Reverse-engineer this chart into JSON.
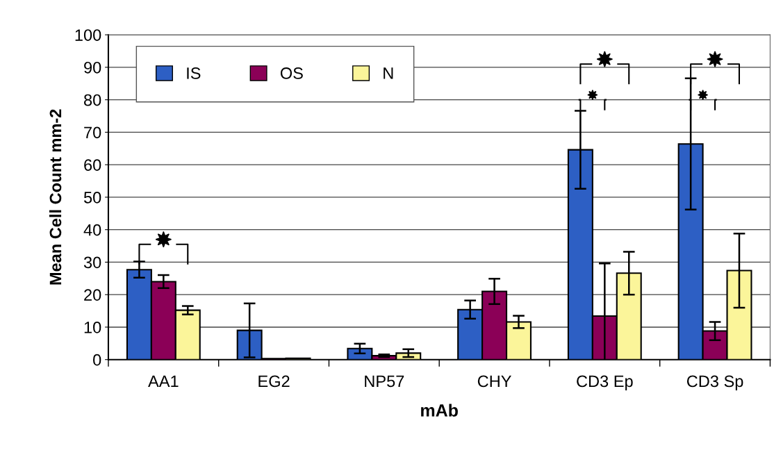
{
  "chart_data": {
    "type": "bar",
    "xlabel": "mAb",
    "ylabel": "Mean Cell Count mm-2",
    "categories": [
      "AA1",
      "EG2",
      "NP57",
      "CHY",
      "CD3 Ep",
      "CD3 Sp"
    ],
    "series": [
      {
        "name": "IS",
        "color": "#2d5fc4",
        "values": [
          27.7,
          9,
          3.4,
          15.4,
          64.6,
          66.4
        ],
        "errors": [
          2.5,
          8.3,
          1.5,
          2.8,
          12,
          20.2
        ]
      },
      {
        "name": "OS",
        "color": "#8b0057",
        "values": [
          24,
          0.3,
          1.2,
          21,
          13.4,
          8.8
        ],
        "errors": [
          2,
          null,
          0.4,
          3.9,
          16.2,
          2.8
        ]
      },
      {
        "name": "N",
        "color": "#fbf59a",
        "values": [
          15.2,
          0.4,
          2,
          11.6,
          26.6,
          27.4
        ],
        "errors": [
          1.3,
          null,
          1.2,
          1.9,
          6.6,
          11.4
        ]
      }
    ],
    "ylim": [
      0,
      100
    ],
    "yticks": [
      0,
      10,
      20,
      30,
      40,
      50,
      60,
      70,
      80,
      90,
      100
    ],
    "grid": "y",
    "legend": "top left"
  }
}
